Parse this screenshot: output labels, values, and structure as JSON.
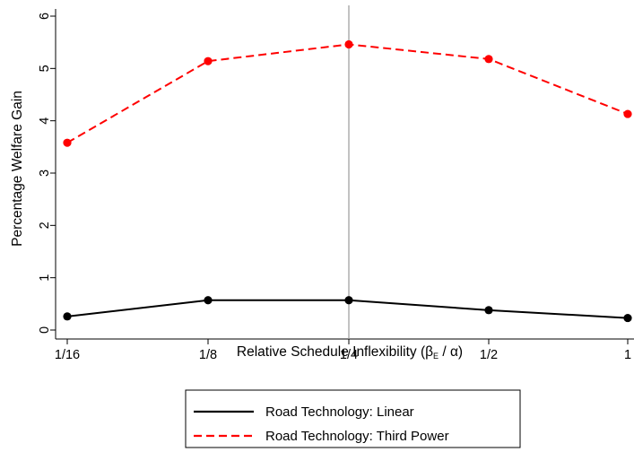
{
  "chart_data": {
    "type": "line",
    "categories": [
      "1/16",
      "1/8",
      "1/4",
      "1/2",
      "1"
    ],
    "series": [
      {
        "name": "Road Technology: Linear",
        "color": "#000000",
        "dash": "solid",
        "values": [
          0.26,
          0.57,
          0.57,
          0.38,
          0.23
        ]
      },
      {
        "name": "Road Technology: Third Power",
        "color": "#ff0000",
        "dash": "dashed",
        "values": [
          3.58,
          5.14,
          5.46,
          5.18,
          4.13
        ]
      }
    ],
    "xlabel": "Relative Schedule Inflexibility (β",
    "xlabel_sub": "E",
    "xlabel_end": " / α)",
    "ylabel": "Percentage Welfare Gain",
    "ylim": [
      0,
      6
    ],
    "yticks": [
      0,
      1,
      2,
      3,
      4,
      5,
      6
    ],
    "reference_line_category": "1/4",
    "reference_line_color": "#999999",
    "grid": false,
    "legend_position": "bottom"
  }
}
